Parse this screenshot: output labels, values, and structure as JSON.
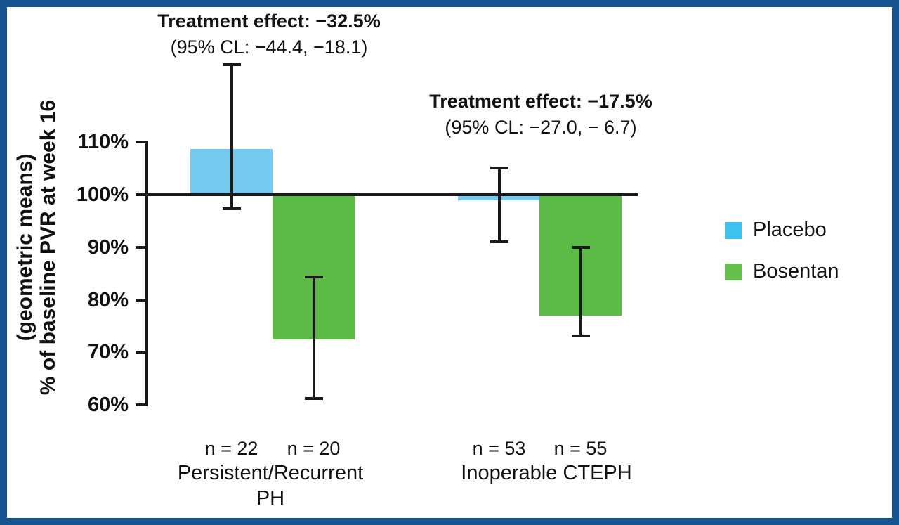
{
  "figure": {
    "border_color": "#15538F",
    "background": "#FFFFFF"
  },
  "chart_data": {
    "type": "bar",
    "title": "",
    "ylabel_line1": "(geometric means)",
    "ylabel_line2": "% of baseline PVR at week 16",
    "ylim": [
      60,
      110
    ],
    "baseline_value": 100,
    "grid": false,
    "legend_position": "right",
    "axis_color": "#1A1A1A",
    "yticks": [
      {
        "value": 110,
        "label": "110%"
      },
      {
        "value": 100,
        "label": "100%"
      },
      {
        "value": 90,
        "label": "90%"
      },
      {
        "value": 80,
        "label": "80%"
      },
      {
        "value": 70,
        "label": "70%"
      },
      {
        "value": 60,
        "label": "60%"
      }
    ],
    "series": [
      {
        "name": "Placebo",
        "bar_color": "#74C9EF"
      },
      {
        "name": "Bosentan",
        "bar_color": "#5CBB47"
      }
    ],
    "groups": [
      {
        "label_lines": [
          "Persistent/Recurrent",
          "PH"
        ],
        "treatment_label": "Treatment effect:",
        "treatment_value": "−32.5%",
        "ci_text": "(95% CL: −44.4, −18.1)",
        "bars": [
          {
            "series": "Placebo",
            "n_label": "n = 22",
            "value": 108.7,
            "ci_low": 97.0,
            "ci_high": 125.0
          },
          {
            "series": "Bosentan",
            "n_label": "n = 20",
            "value": 72.5,
            "ci_low": 61.0,
            "ci_high": 84.6
          }
        ]
      },
      {
        "label_lines": [
          "Inoperable CTEPH"
        ],
        "treatment_label": "Treatment effect:",
        "treatment_value": "−17.5%",
        "ci_text": "(95% CL: −27.0, − 6.7)",
        "bars": [
          {
            "series": "Placebo",
            "n_label": "n = 53",
            "value": 98.9,
            "ci_low": 90.8,
            "ci_high": 105.4
          },
          {
            "series": "Bosentan",
            "n_label": "n = 55",
            "value": 77.0,
            "ci_low": 72.8,
            "ci_high": 90.2
          }
        ]
      }
    ]
  },
  "legend": {
    "items": [
      {
        "label": "Placebo",
        "color": "#3EC1ED"
      },
      {
        "label": "Bosentan",
        "color": "#64BE4C"
      }
    ]
  }
}
